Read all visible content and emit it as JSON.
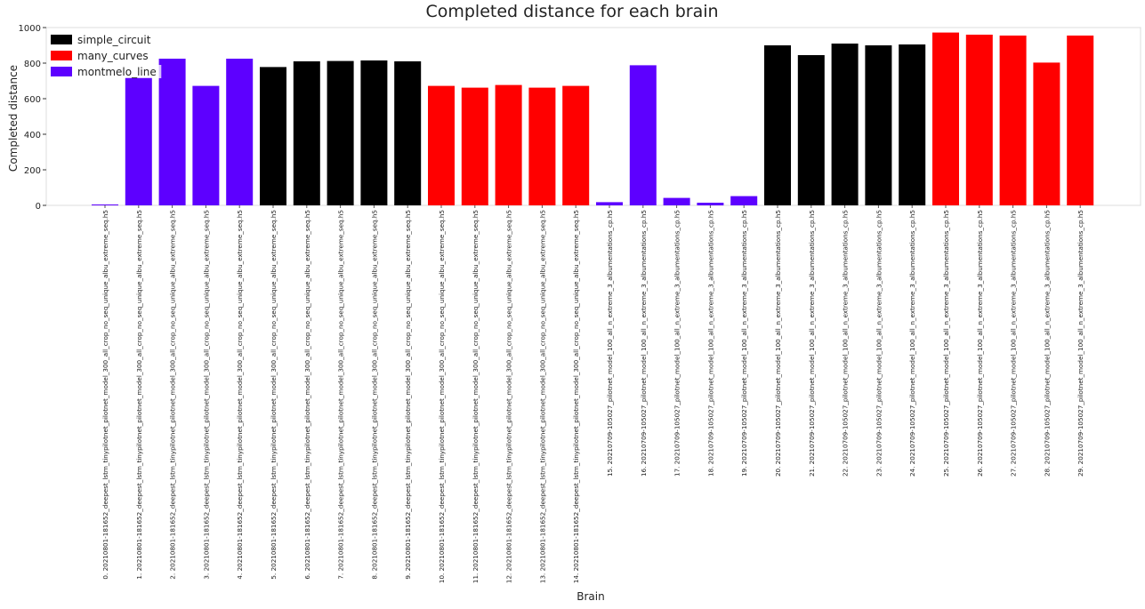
{
  "chart_data": {
    "type": "bar",
    "title": "Completed distance for each brain",
    "xlabel": "Brain",
    "ylabel": "Completed distance",
    "ylim": [
      0,
      1000
    ],
    "yticks": [
      0,
      200,
      400,
      600,
      800,
      1000
    ],
    "grid": false,
    "legend_placement": "top-left",
    "legend": [
      {
        "name": "simple_circuit",
        "color": "#000000"
      },
      {
        "name": "many_curves",
        "color": "#ff0000"
      },
      {
        "name": "montmelo_line",
        "color": "#5d00ff"
      }
    ],
    "categories": [
      "0. 20210801-181652_deepest_lstm_tinypilotnet_pilotnet_model_300_all_crop_no_seq_unique_albu_extreme_seq.h5",
      "1. 20210801-181652_deepest_lstm_tinypilotnet_pilotnet_model_300_all_crop_no_seq_unique_albu_extreme_seq.h5",
      "2. 20210801-181652_deepest_lstm_tinypilotnet_pilotnet_model_300_all_crop_no_seq_unique_albu_extreme_seq.h5",
      "3. 20210801-181652_deepest_lstm_tinypilotnet_pilotnet_model_300_all_crop_no_seq_unique_albu_extreme_seq.h5",
      "4. 20210801-181652_deepest_lstm_tinypilotnet_pilotnet_model_300_all_crop_no_seq_unique_albu_extreme_seq.h5",
      "5. 20210801-181652_deepest_lstm_tinypilotnet_pilotnet_model_300_all_crop_no_seq_unique_albu_extreme_seq.h5",
      "6. 20210801-181652_deepest_lstm_tinypilotnet_pilotnet_model_300_all_crop_no_seq_unique_albu_extreme_seq.h5",
      "7. 20210801-181652_deepest_lstm_tinypilotnet_pilotnet_model_300_all_crop_no_seq_unique_albu_extreme_seq.h5",
      "8. 20210801-181652_deepest_lstm_tinypilotnet_pilotnet_model_300_all_crop_no_seq_unique_albu_extreme_seq.h5",
      "9. 20210801-181652_deepest_lstm_tinypilotnet_pilotnet_model_300_all_crop_no_seq_unique_albu_extreme_seq.h5",
      "10. 20210801-181652_deepest_lstm_tinypilotnet_pilotnet_model_300_all_crop_no_seq_unique_albu_extreme_seq.h5",
      "11. 20210801-181652_deepest_lstm_tinypilotnet_pilotnet_model_300_all_crop_no_seq_unique_albu_extreme_seq.h5",
      "12. 20210801-181652_deepest_lstm_tinypilotnet_pilotnet_model_300_all_crop_no_seq_unique_albu_extreme_seq.h5",
      "13. 20210801-181652_deepest_lstm_tinypilotnet_pilotnet_model_300_all_crop_no_seq_unique_albu_extreme_seq.h5",
      "14. 20210801-181652_deepest_lstm_tinypilotnet_pilotnet_model_300_all_crop_no_seq_unique_albu_extreme_seq.h5",
      "15. 20210709-105027_pilotnet_model_100_all_n_extreme_3_albumentations_cp.h5",
      "16. 20210709-105027_pilotnet_model_100_all_n_extreme_3_albumentations_cp.h5",
      "17. 20210709-105027_pilotnet_model_100_all_n_extreme_3_albumentations_cp.h5",
      "18. 20210709-105027_pilotnet_model_100_all_n_extreme_3_albumentations_cp.h5",
      "19. 20210709-105027_pilotnet_model_100_all_n_extreme_3_albumentations_cp.h5",
      "20. 20210709-105027_pilotnet_model_100_all_n_extreme_3_albumentations_cp.h5",
      "21. 20210709-105027_pilotnet_model_100_all_n_extreme_3_albumentations_cp.h5",
      "22. 20210709-105027_pilotnet_model_100_all_n_extreme_3_albumentations_cp.h5",
      "23. 20210709-105027_pilotnet_model_100_all_n_extreme_3_albumentations_cp.h5",
      "24. 20210709-105027_pilotnet_model_100_all_n_extreme_3_albumentations_cp.h5",
      "25. 20210709-105027_pilotnet_model_100_all_n_extreme_3_albumentations_cp.h5",
      "26. 20210709-105027_pilotnet_model_100_all_n_extreme_3_albumentations_cp.h5",
      "27. 20210709-105027_pilotnet_model_100_all_n_extreme_3_albumentations_cp.h5",
      "28. 20210709-105027_pilotnet_model_100_all_n_extreme_3_albumentations_cp.h5",
      "29. 20210709-105027_pilotnet_model_100_all_n_extreme_3_albumentations_cp.h5"
    ],
    "values": [
      5,
      720,
      825,
      672,
      825,
      778,
      810,
      812,
      815,
      810,
      672,
      662,
      677,
      662,
      672,
      18,
      788,
      42,
      15,
      52,
      900,
      845,
      910,
      900,
      905,
      972,
      960,
      955,
      803,
      955
    ],
    "bar_colors": [
      "#5d00ff",
      "#5d00ff",
      "#5d00ff",
      "#5d00ff",
      "#5d00ff",
      "#000000",
      "#000000",
      "#000000",
      "#000000",
      "#000000",
      "#ff0000",
      "#ff0000",
      "#ff0000",
      "#ff0000",
      "#ff0000",
      "#5d00ff",
      "#5d00ff",
      "#5d00ff",
      "#5d00ff",
      "#5d00ff",
      "#000000",
      "#000000",
      "#000000",
      "#000000",
      "#000000",
      "#ff0000",
      "#ff0000",
      "#ff0000",
      "#ff0000",
      "#ff0000"
    ]
  }
}
